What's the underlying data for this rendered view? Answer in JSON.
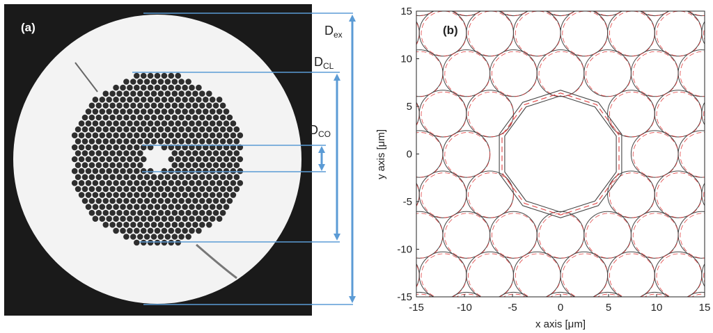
{
  "panel_a": {
    "label": "(a)",
    "dims": [
      {
        "main": "D",
        "sub": "ex"
      },
      {
        "main": "D",
        "sub": "CL"
      },
      {
        "main": "D",
        "sub": "CO"
      }
    ]
  },
  "panel_b": {
    "label": "(b)"
  },
  "colors": {
    "arrow": "#5b9bd5",
    "model_line": "#444444",
    "measured_line": "#e04040",
    "photo_bg": "#1a1a1a",
    "fiber_cladding": "#f2f2f2",
    "capillary": "#2e2e2e"
  },
  "chart_data": {
    "type": "scatter",
    "title": "",
    "xlabel": "x axis [μm]",
    "ylabel": "y axis [μm]",
    "xlim": [
      -15,
      15
    ],
    "ylim": [
      -15,
      15
    ],
    "xticks": [
      -15,
      -10,
      -5,
      0,
      5,
      10,
      15
    ],
    "yticks": [
      -15,
      -10,
      -5,
      0,
      5,
      10,
      15
    ],
    "grid": false,
    "series": []
  }
}
